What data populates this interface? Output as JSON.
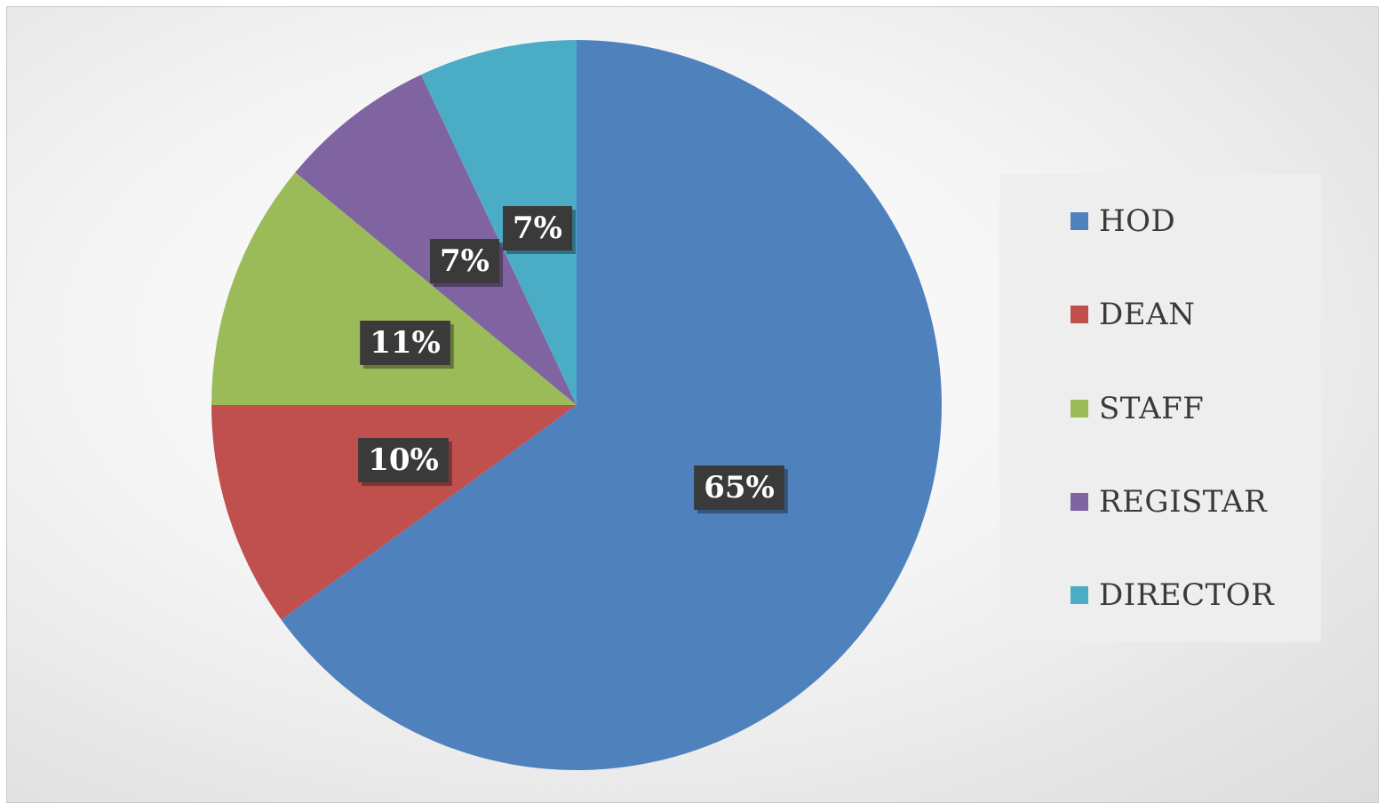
{
  "chart_data": {
    "type": "pie",
    "categories": [
      "HOD",
      "DEAN",
      "STAFF",
      "REGISTAR",
      "DIRECTOR"
    ],
    "values": [
      65,
      10,
      11,
      7,
      7
    ],
    "data_labels": [
      "65%",
      "10%",
      "11%",
      "7%",
      "7%"
    ],
    "colors": [
      "#4f81bd",
      "#c0504d",
      "#9bbb59",
      "#8064a2",
      "#4bacc6"
    ],
    "legend_position": "right",
    "start_angle": "12 o'clock",
    "direction": "clockwise"
  },
  "legend": {
    "items": [
      {
        "label": "HOD",
        "color": "#4f81bd"
      },
      {
        "label": "DEAN",
        "color": "#c0504d"
      },
      {
        "label": "STAFF",
        "color": "#9bbb59"
      },
      {
        "label": "REGISTAR",
        "color": "#8064a2"
      },
      {
        "label": "DIRECTOR",
        "color": "#4bacc6"
      }
    ]
  }
}
